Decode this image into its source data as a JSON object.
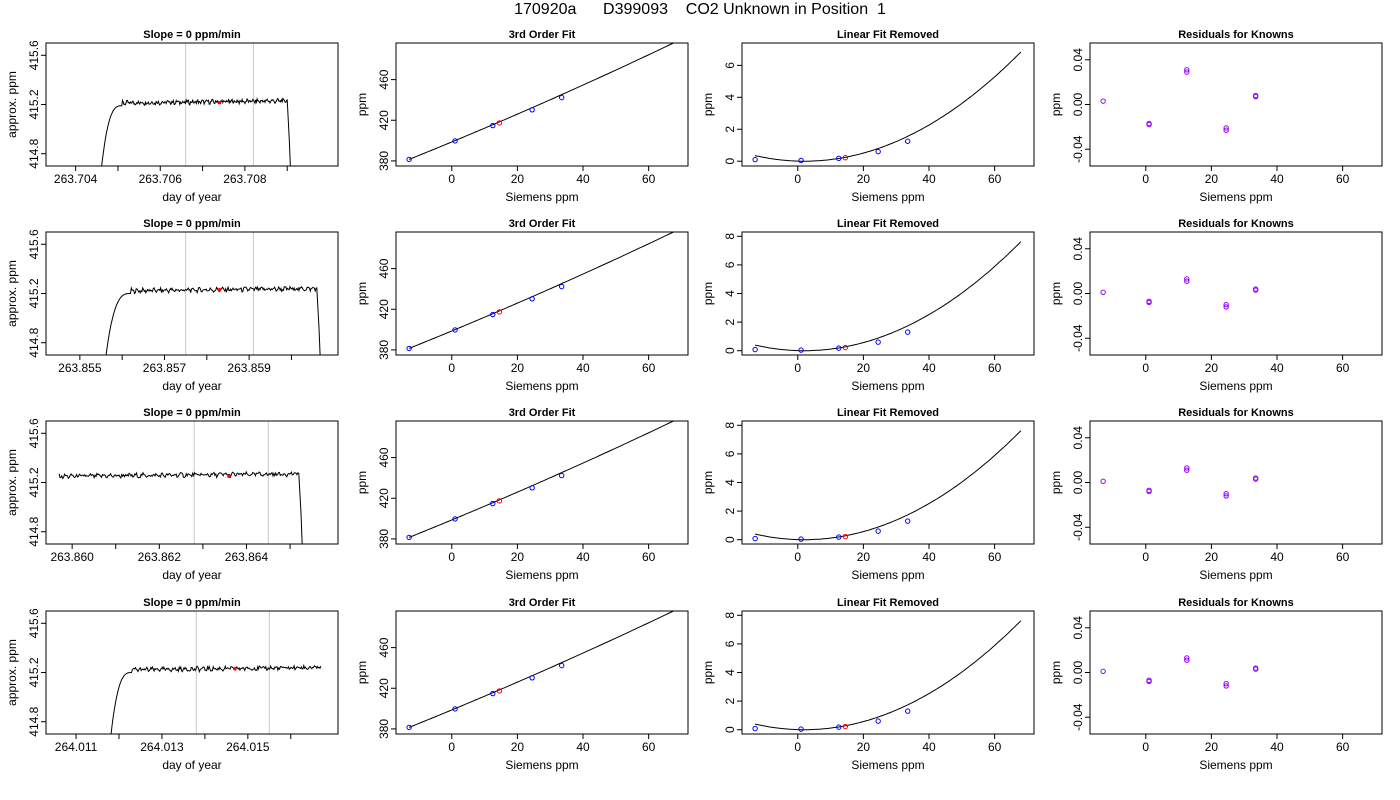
{
  "figure": {
    "title": "170920a      D399093    CO2 Unknown in Position  1",
    "colors": {
      "trace": "#000000",
      "known": "#0000ff",
      "unknown": "#ff0000",
      "residual": "#9900ff",
      "window": "#c8c8c8"
    }
  },
  "chart_data": [
    {
      "type": "line",
      "row": 1,
      "col": 1,
      "title": "Slope =  0  ppm/min",
      "xlabel": "day of year",
      "ylabel": "approx. ppm",
      "xlim": [
        263.7033,
        263.7102
      ],
      "ylim": [
        414.7,
        415.7
      ],
      "xticks": [
        263.704,
        263.706,
        263.708
      ],
      "xtick_labels": [
        "263.704",
        "263.706",
        "263.708"
      ],
      "yticks": [
        414.8,
        415.2,
        415.6
      ],
      "ytick_labels": [
        "414.8",
        "415.2",
        "415.6"
      ],
      "minor_xticks": [
        263.705,
        263.707,
        263.709
      ],
      "window": [
        263.7066,
        263.7082
      ],
      "marker": {
        "x": 263.7074,
        "y": 415.215
      },
      "trace_start": 263.7046,
      "trace_end": 263.709,
      "rise_end": 263.7051,
      "plateau": 415.21
    },
    {
      "type": "scatter",
      "row": 1,
      "col": 2,
      "title": "3rd Order Fit",
      "xlabel": "Siemens ppm",
      "ylabel": "ppm",
      "xlim": [
        -17,
        72
      ],
      "ylim": [
        375,
        496
      ],
      "xticks": [
        0,
        20,
        40,
        60
      ],
      "yticks": [
        380,
        420,
        460
      ],
      "curve": {
        "x0": -13,
        "x1": 68,
        "y_at_x0": 381.5,
        "slope": 1.3,
        "quad": 0.0015
      },
      "known_points": [
        [
          -13,
          381.5
        ],
        [
          1,
          399.7
        ],
        [
          12.5,
          414.8
        ],
        [
          24.5,
          430.3
        ],
        [
          33.5,
          442.3
        ]
      ],
      "unknown_points": [
        [
          14.5,
          417.4
        ]
      ]
    },
    {
      "type": "scatter",
      "row": 1,
      "col": 3,
      "title": "Linear Fit Removed",
      "xlabel": "Siemens ppm",
      "ylabel": "ppm",
      "xlim": [
        -17,
        72
      ],
      "ylim": [
        -0.3,
        7.4
      ],
      "xticks": [
        0,
        20,
        40,
        60
      ],
      "yticks": [
        0,
        2,
        4,
        6
      ],
      "curve": {
        "x0": -13,
        "x1": 68,
        "vertex": 2,
        "a": 0.00157
      },
      "known_points": [
        [
          -13,
          0.1
        ],
        [
          1,
          0.05
        ],
        [
          12.5,
          0.18
        ],
        [
          24.5,
          0.6
        ],
        [
          33.5,
          1.25
        ]
      ],
      "unknown_points": [
        [
          14.5,
          0.22
        ]
      ]
    },
    {
      "type": "scatter",
      "row": 1,
      "col": 4,
      "title": "Residuals for Knowns",
      "xlabel": "Siemens ppm",
      "ylabel": "ppm",
      "xlim": [
        -17,
        72
      ],
      "ylim": [
        -0.055,
        0.055
      ],
      "xticks": [
        0,
        20,
        40,
        60
      ],
      "yticks": [
        -0.04,
        0.0,
        0.04
      ],
      "ytick_labels": [
        "-0.04",
        "0.00",
        "0.04"
      ],
      "points": [
        [
          -13,
          0.003
        ],
        [
          1,
          -0.017
        ],
        [
          1,
          -0.018
        ],
        [
          12.5,
          0.029
        ],
        [
          12.5,
          0.031
        ],
        [
          24.5,
          -0.021
        ],
        [
          24.5,
          -0.023
        ],
        [
          33.5,
          0.007
        ],
        [
          33.5,
          0.008
        ]
      ]
    },
    {
      "type": "line",
      "row": 2,
      "col": 1,
      "title": "Slope =  0  ppm/min",
      "xlabel": "day of year",
      "ylabel": "approx. ppm",
      "xlim": [
        263.8542,
        263.8611
      ],
      "ylim": [
        414.7,
        415.7
      ],
      "xticks": [
        263.855,
        263.857,
        263.859
      ],
      "xtick_labels": [
        "263.855",
        "263.857",
        "263.859"
      ],
      "yticks": [
        414.8,
        415.2,
        415.6
      ],
      "ytick_labels": [
        "414.8",
        "415.2",
        "415.6"
      ],
      "minor_xticks": [
        263.856,
        263.858,
        263.86
      ],
      "window": [
        263.8575,
        263.8591
      ],
      "marker": {
        "x": 263.8583,
        "y": 415.23
      },
      "trace_start": 263.8556,
      "trace_end": 263.8606,
      "rise_end": 263.8562,
      "plateau": 415.22
    },
    {
      "type": "scatter",
      "row": 2,
      "col": 2,
      "title": "3rd Order Fit",
      "xlabel": "Siemens ppm",
      "ylabel": "ppm",
      "xlim": [
        -17,
        72
      ],
      "ylim": [
        375,
        496
      ],
      "xticks": [
        0,
        20,
        40,
        60
      ],
      "yticks": [
        380,
        420,
        460
      ],
      "curve": {
        "x0": -13,
        "x1": 68,
        "y_at_x0": 381.5,
        "slope": 1.3,
        "quad": 0.0015
      },
      "known_points": [
        [
          -13,
          381.5
        ],
        [
          1,
          399.7
        ],
        [
          12.5,
          414.8
        ],
        [
          24.5,
          430.3
        ],
        [
          33.5,
          442.3
        ]
      ],
      "unknown_points": [
        [
          14.5,
          417.4
        ]
      ]
    },
    {
      "type": "scatter",
      "row": 2,
      "col": 3,
      "title": "Linear Fit Removed",
      "xlabel": "Siemens ppm",
      "ylabel": "ppm",
      "xlim": [
        -17,
        72
      ],
      "ylim": [
        -0.3,
        8.3
      ],
      "xticks": [
        0,
        20,
        40,
        60
      ],
      "yticks": [
        0,
        2,
        4,
        6,
        8
      ],
      "curve": {
        "x0": -13,
        "x1": 68,
        "vertex": 2,
        "a": 0.00175
      },
      "known_points": [
        [
          -13,
          0.08
        ],
        [
          1,
          0.04
        ],
        [
          12.5,
          0.18
        ],
        [
          24.5,
          0.6
        ],
        [
          33.5,
          1.3
        ]
      ],
      "unknown_points": [
        [
          14.5,
          0.22
        ]
      ]
    },
    {
      "type": "scatter",
      "row": 2,
      "col": 4,
      "title": "Residuals for Knowns",
      "xlabel": "Siemens ppm",
      "ylabel": "ppm",
      "xlim": [
        -17,
        72
      ],
      "ylim": [
        -0.055,
        0.055
      ],
      "xticks": [
        0,
        20,
        40,
        60
      ],
      "yticks": [
        -0.04,
        0.0,
        0.04
      ],
      "ytick_labels": [
        "-0.04",
        "0.00",
        "0.04"
      ],
      "points": [
        [
          -13,
          0.001
        ],
        [
          1,
          -0.007
        ],
        [
          1,
          -0.008
        ],
        [
          12.5,
          0.011
        ],
        [
          12.5,
          0.013
        ],
        [
          24.5,
          -0.01
        ],
        [
          24.5,
          -0.012
        ],
        [
          33.5,
          0.003
        ],
        [
          33.5,
          0.004
        ]
      ]
    },
    {
      "type": "line",
      "row": 3,
      "col": 1,
      "title": "Slope =  0  ppm/min",
      "xlabel": "day of year",
      "ylabel": "approx. ppm",
      "xlim": [
        263.8594,
        263.8661
      ],
      "ylim": [
        414.7,
        415.7
      ],
      "xticks": [
        263.86,
        263.862,
        263.864
      ],
      "xtick_labels": [
        "263.860",
        "263.862",
        "263.864"
      ],
      "yticks": [
        414.8,
        415.2,
        415.6
      ],
      "ytick_labels": [
        "414.8",
        "415.2",
        "415.6"
      ],
      "minor_xticks": [
        263.861,
        263.863,
        263.865
      ],
      "window": [
        263.8628,
        263.8645
      ],
      "marker": {
        "x": 263.8636,
        "y": 415.25
      },
      "trace_start": 263.8597,
      "trace_end": 263.8652,
      "rise_end": 263.8597,
      "plateau": 415.25
    },
    {
      "type": "scatter",
      "row": 3,
      "col": 2,
      "title": "3rd Order Fit",
      "xlabel": "Siemens ppm",
      "ylabel": "ppm",
      "xlim": [
        -17,
        72
      ],
      "ylim": [
        375,
        496
      ],
      "xticks": [
        0,
        20,
        40,
        60
      ],
      "yticks": [
        380,
        420,
        460
      ],
      "curve": {
        "x0": -13,
        "x1": 68,
        "y_at_x0": 381.5,
        "slope": 1.3,
        "quad": 0.0015
      },
      "known_points": [
        [
          -13,
          381.5
        ],
        [
          1,
          399.7
        ],
        [
          12.5,
          414.8
        ],
        [
          24.5,
          430.3
        ],
        [
          33.5,
          442.3
        ]
      ],
      "unknown_points": [
        [
          14.5,
          417.4
        ]
      ]
    },
    {
      "type": "scatter",
      "row": 3,
      "col": 3,
      "title": "Linear Fit Removed",
      "xlabel": "Siemens ppm",
      "ylabel": "ppm",
      "xlim": [
        -17,
        72
      ],
      "ylim": [
        -0.3,
        8.3
      ],
      "xticks": [
        0,
        20,
        40,
        60
      ],
      "yticks": [
        0,
        2,
        4,
        6,
        8
      ],
      "curve": {
        "x0": -13,
        "x1": 68,
        "vertex": 2,
        "a": 0.00175
      },
      "known_points": [
        [
          -13,
          0.08
        ],
        [
          1,
          0.04
        ],
        [
          12.5,
          0.18
        ],
        [
          24.5,
          0.6
        ],
        [
          33.5,
          1.3
        ]
      ],
      "unknown_points": [
        [
          14.5,
          0.22
        ]
      ]
    },
    {
      "type": "scatter",
      "row": 3,
      "col": 4,
      "title": "Residuals for Knowns",
      "xlabel": "Siemens ppm",
      "ylabel": "ppm",
      "xlim": [
        -17,
        72
      ],
      "ylim": [
        -0.055,
        0.055
      ],
      "xticks": [
        0,
        20,
        40,
        60
      ],
      "yticks": [
        -0.04,
        0.0,
        0.04
      ],
      "ytick_labels": [
        "-0.04",
        "0.00",
        "0.04"
      ],
      "points": [
        [
          -13,
          0.001
        ],
        [
          1,
          -0.007
        ],
        [
          1,
          -0.008
        ],
        [
          12.5,
          0.011
        ],
        [
          12.5,
          0.013
        ],
        [
          24.5,
          -0.01
        ],
        [
          24.5,
          -0.012
        ],
        [
          33.5,
          0.003
        ],
        [
          33.5,
          0.004
        ]
      ]
    },
    {
      "type": "line",
      "row": 4,
      "col": 1,
      "title": "Slope =  0  ppm/min",
      "xlabel": "day of year",
      "ylabel": "approx. ppm",
      "xlim": [
        264.0103,
        264.0171
      ],
      "ylim": [
        414.7,
        415.7
      ],
      "xticks": [
        264.011,
        264.013,
        264.015
      ],
      "xtick_labels": [
        "264.011",
        "264.013",
        "264.015"
      ],
      "yticks": [
        414.8,
        415.2,
        415.6
      ],
      "ytick_labels": [
        "414.8",
        "415.2",
        "415.6"
      ],
      "minor_xticks": [
        264.012,
        264.014,
        264.016
      ],
      "window": [
        264.0138,
        264.0155
      ],
      "marker": {
        "x": 264.0147,
        "y": 415.23
      },
      "trace_start": 264.0118,
      "trace_end": 264.0167,
      "rise_end": 264.0123,
      "plateau": 415.22
    },
    {
      "type": "scatter",
      "row": 4,
      "col": 2,
      "title": "3rd Order Fit",
      "xlabel": "Siemens ppm",
      "ylabel": "ppm",
      "xlim": [
        -17,
        72
      ],
      "ylim": [
        375,
        496
      ],
      "xticks": [
        0,
        20,
        40,
        60
      ],
      "yticks": [
        380,
        420,
        460
      ],
      "curve": {
        "x0": -13,
        "x1": 68,
        "y_at_x0": 381.5,
        "slope": 1.3,
        "quad": 0.0015
      },
      "known_points": [
        [
          -13,
          381.5
        ],
        [
          1,
          399.7
        ],
        [
          12.5,
          414.8
        ],
        [
          24.5,
          430.3
        ],
        [
          33.5,
          442.3
        ]
      ],
      "unknown_points": [
        [
          14.5,
          417.4
        ]
      ]
    },
    {
      "type": "scatter",
      "row": 4,
      "col": 3,
      "title": "Linear Fit Removed",
      "xlabel": "Siemens ppm",
      "ylabel": "ppm",
      "xlim": [
        -17,
        72
      ],
      "ylim": [
        -0.3,
        8.3
      ],
      "xticks": [
        0,
        20,
        40,
        60
      ],
      "yticks": [
        0,
        2,
        4,
        6,
        8
      ],
      "curve": {
        "x0": -13,
        "x1": 68,
        "vertex": 2,
        "a": 0.00175
      },
      "known_points": [
        [
          -13,
          0.08
        ],
        [
          1,
          0.04
        ],
        [
          12.5,
          0.18
        ],
        [
          24.5,
          0.6
        ],
        [
          33.5,
          1.3
        ]
      ],
      "unknown_points": [
        [
          14.5,
          0.22
        ]
      ]
    },
    {
      "type": "scatter",
      "row": 4,
      "col": 4,
      "title": "Residuals for Knowns",
      "xlabel": "Siemens ppm",
      "ylabel": "ppm",
      "xlim": [
        -17,
        72
      ],
      "ylim": [
        -0.055,
        0.055
      ],
      "xticks": [
        0,
        20,
        40,
        60
      ],
      "yticks": [
        -0.04,
        0.0,
        0.04
      ],
      "ytick_labels": [
        "-0.04",
        "0.00",
        "0.04"
      ],
      "points": [
        [
          -13,
          0.001
        ],
        [
          1,
          -0.007
        ],
        [
          1,
          -0.008
        ],
        [
          12.5,
          0.011
        ],
        [
          12.5,
          0.013
        ],
        [
          24.5,
          -0.01
        ],
        [
          24.5,
          -0.012
        ],
        [
          33.5,
          0.003
        ],
        [
          33.5,
          0.004
        ]
      ]
    }
  ]
}
